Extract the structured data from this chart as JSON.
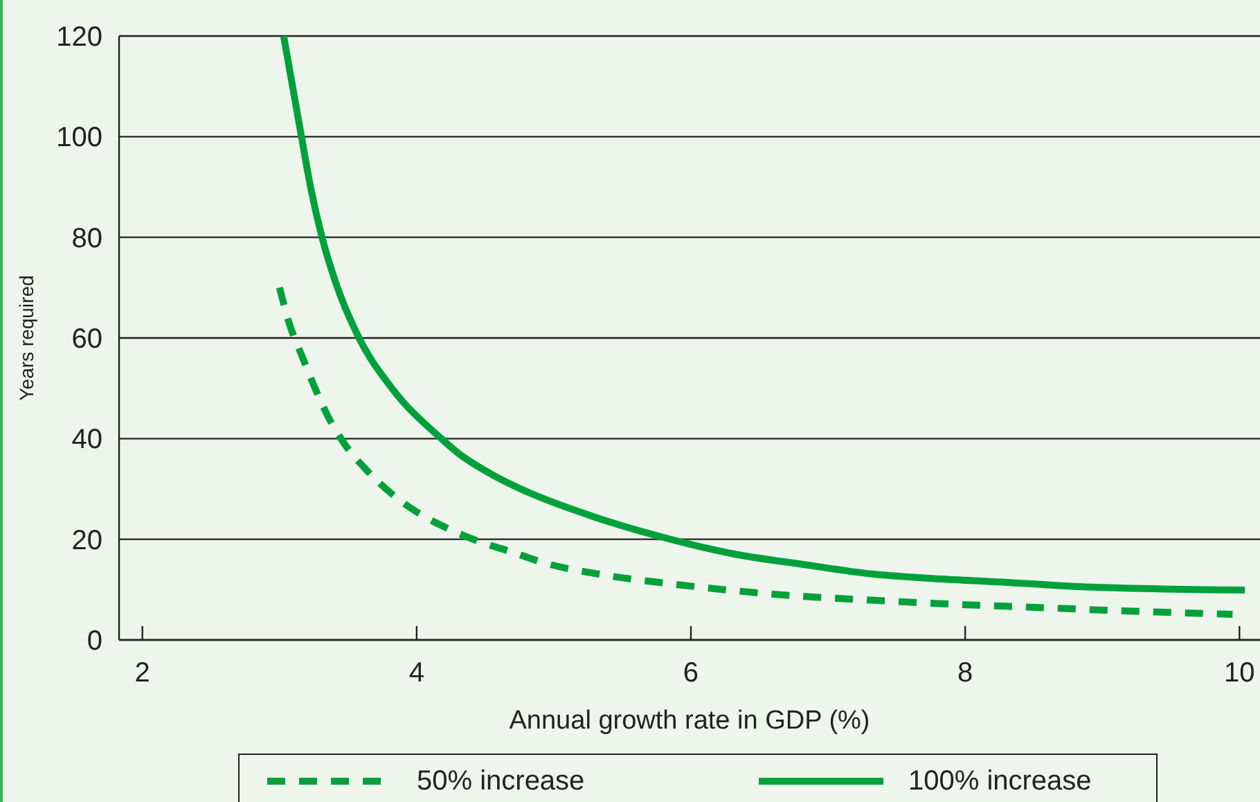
{
  "chart_data": {
    "type": "line",
    "xlabel": "Annual growth rate in GDP (%)",
    "ylabel": "Years required",
    "xlim": [
      1.83,
      10.15
    ],
    "xticks": [
      2,
      4,
      6,
      8,
      10
    ],
    "ylim": [
      0,
      120
    ],
    "yticks": [
      0,
      20,
      40,
      60,
      80,
      100,
      120
    ],
    "grid": "y",
    "legend": "bottom",
    "marker": "none",
    "series": [
      {
        "name": "50% increase",
        "color": "#00a13a",
        "line_style": "dashed",
        "x": [
          3.0,
          3.07,
          3.17,
          3.25,
          3.35,
          3.47,
          3.64,
          3.82,
          4.02,
          4.23,
          4.46,
          4.68,
          4.92,
          5.39,
          5.87,
          6.35,
          6.85,
          7.32,
          7.83,
          8.3,
          9.34,
          9.95
        ],
        "values": [
          70,
          63,
          56,
          50.6,
          44.6,
          39.1,
          33.6,
          29,
          25.1,
          22.1,
          19.5,
          17.6,
          15.4,
          12.8,
          11.1,
          9.7,
          8.6,
          7.9,
          7.2,
          6.7,
          5.6,
          5.1
        ]
      },
      {
        "name": "100% increase",
        "color": "#00a13a",
        "line_style": "solid",
        "x": [
          3.03,
          3.16,
          3.23,
          3.31,
          3.41,
          3.58,
          3.82,
          4.18,
          4.29,
          4.56,
          4.8,
          5.3,
          5.81,
          6.31,
          6.82,
          7.32,
          7.83,
          8.33,
          8.83,
          10.04
        ],
        "values": [
          120,
          100,
          89.5,
          80,
          71,
          60,
          50,
          40,
          37.4,
          32.7,
          29.5,
          24.4,
          20.3,
          17.1,
          15,
          13.1,
          12.1,
          11.4,
          10.6,
          9.9
        ]
      }
    ]
  }
}
